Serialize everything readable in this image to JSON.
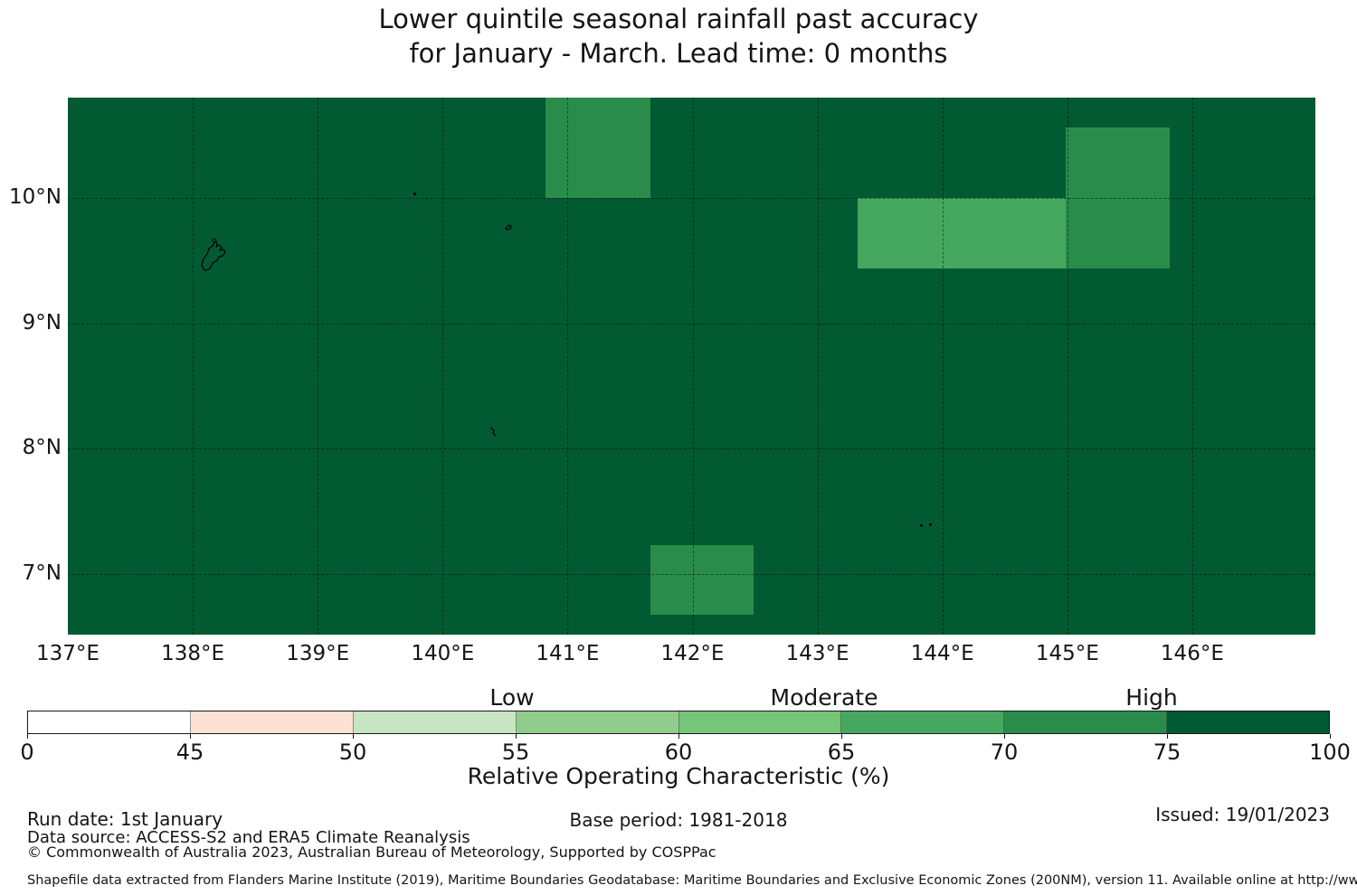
{
  "title": {
    "line1": "Lower quintile seasonal rainfall past accuracy",
    "line2": "for January - March. Lead time: 0 months"
  },
  "map": {
    "x_tick_labels": [
      "137°E",
      "138°E",
      "139°E",
      "140°E",
      "141°E",
      "142°E",
      "143°E",
      "144°E",
      "145°E",
      "146°E"
    ],
    "x_tick_lons": [
      137,
      138,
      139,
      140,
      141,
      142,
      143,
      144,
      145,
      146
    ],
    "y_tick_labels": [
      "10°N",
      "9°N",
      "8°N",
      "7°N"
    ],
    "y_tick_lats": [
      10,
      9,
      8,
      7
    ],
    "lon_gridlines": [
      138,
      139,
      140,
      141,
      142,
      143,
      144,
      145,
      146
    ],
    "lat_gridlines": [
      10,
      9,
      8,
      7
    ]
  },
  "colorbar": {
    "axis_label": "Relative Operating Characteristic (%)",
    "tick_labels": [
      "0",
      "45",
      "50",
      "55",
      "60",
      "65",
      "70",
      "75",
      "100"
    ],
    "segments": [
      {
        "range": "0-45",
        "color": "#ffffff"
      },
      {
        "range": "45-50",
        "color": "#fbe2d3"
      },
      {
        "range": "50-55",
        "color": "#c7e5c1"
      },
      {
        "range": "55-60",
        "color": "#90cd8d"
      },
      {
        "range": "60-65",
        "color": "#76c578"
      },
      {
        "range": "65-70",
        "color": "#46a85e"
      },
      {
        "range": "70-75",
        "color": "#2a8c4a"
      },
      {
        "range": "75-100",
        "color": "#015a31"
      }
    ],
    "zone_labels": [
      "Low",
      "Moderate",
      "High"
    ]
  },
  "footer": {
    "run_date": "Run date: 1st January",
    "base_period": "Base period: 1981-2018",
    "issued": "Issued: 19/01/2023",
    "data_source": "Data source: ACCESS-S2 and ERA5 Climate Reanalysis",
    "copyright": "© Commonwealth of Australia 2023, Australian Bureau of Meteorology, Supported by COSPPac",
    "shapefile_note": "Shapefile data extracted from Flanders Marine Institute (2019), Maritime Boundaries Geodatabase: Maritime Boundaries and Exclusive Economic Zones (200NM), version 11. Available online at http://www.marineregions.org/."
  },
  "chart_data": {
    "type": "heatmap",
    "title": "Lower quintile seasonal rainfall past accuracy for January - March. Lead time: 0 months",
    "xlabel": "Relative Operating Characteristic (%)",
    "x_axis_ticks": [
      "137°E",
      "138°E",
      "139°E",
      "140°E",
      "141°E",
      "142°E",
      "143°E",
      "144°E",
      "145°E",
      "146°E"
    ],
    "y_axis_ticks": [
      "10°N",
      "9°N",
      "8°N",
      "7°N"
    ],
    "lon_range_deg": [
      137.0,
      146.98
    ],
    "lat_range_deg": [
      6.51,
      10.8
    ],
    "grid": "1-degree graticule, dashed",
    "background_roc_class": "75-100",
    "background_color": "#015a31",
    "anomalous_cells": [
      {
        "lon_deg": [
          140.82,
          141.66
        ],
        "lat_deg": [
          10.0,
          10.8
        ],
        "roc_class": "70-75",
        "color": "#2a8c4a"
      },
      {
        "lon_deg": [
          144.99,
          145.82
        ],
        "lat_deg": [
          9.44,
          10.56
        ],
        "roc_class": "70-75",
        "color": "#2a8c4a"
      },
      {
        "lon_deg": [
          143.32,
          144.99
        ],
        "lat_deg": [
          9.44,
          10.0
        ],
        "roc_class": "65-70",
        "color": "#46a85e"
      },
      {
        "lon_deg": [
          141.66,
          142.49
        ],
        "lat_deg": [
          6.67,
          7.23
        ],
        "roc_class": "70-75",
        "color": "#2a8c4a"
      }
    ],
    "colorbar": {
      "boundaries": [
        0,
        45,
        50,
        55,
        60,
        65,
        70,
        75,
        100
      ],
      "colors": [
        "#ffffff",
        "#fbe2d3",
        "#c7e5c1",
        "#90cd8d",
        "#76c578",
        "#46a85e",
        "#2a8c4a",
        "#015a31"
      ],
      "zones": [
        {
          "label": "Low",
          "around_value": 55
        },
        {
          "label": "Moderate",
          "around_value": 65
        },
        {
          "label": "High",
          "around_value": 75
        }
      ],
      "label": "Relative Operating Characteristic (%)"
    },
    "legend_position": "bottom",
    "base_period": "1981-2018",
    "run_date": "1st January",
    "issued": "19/01/2023"
  }
}
